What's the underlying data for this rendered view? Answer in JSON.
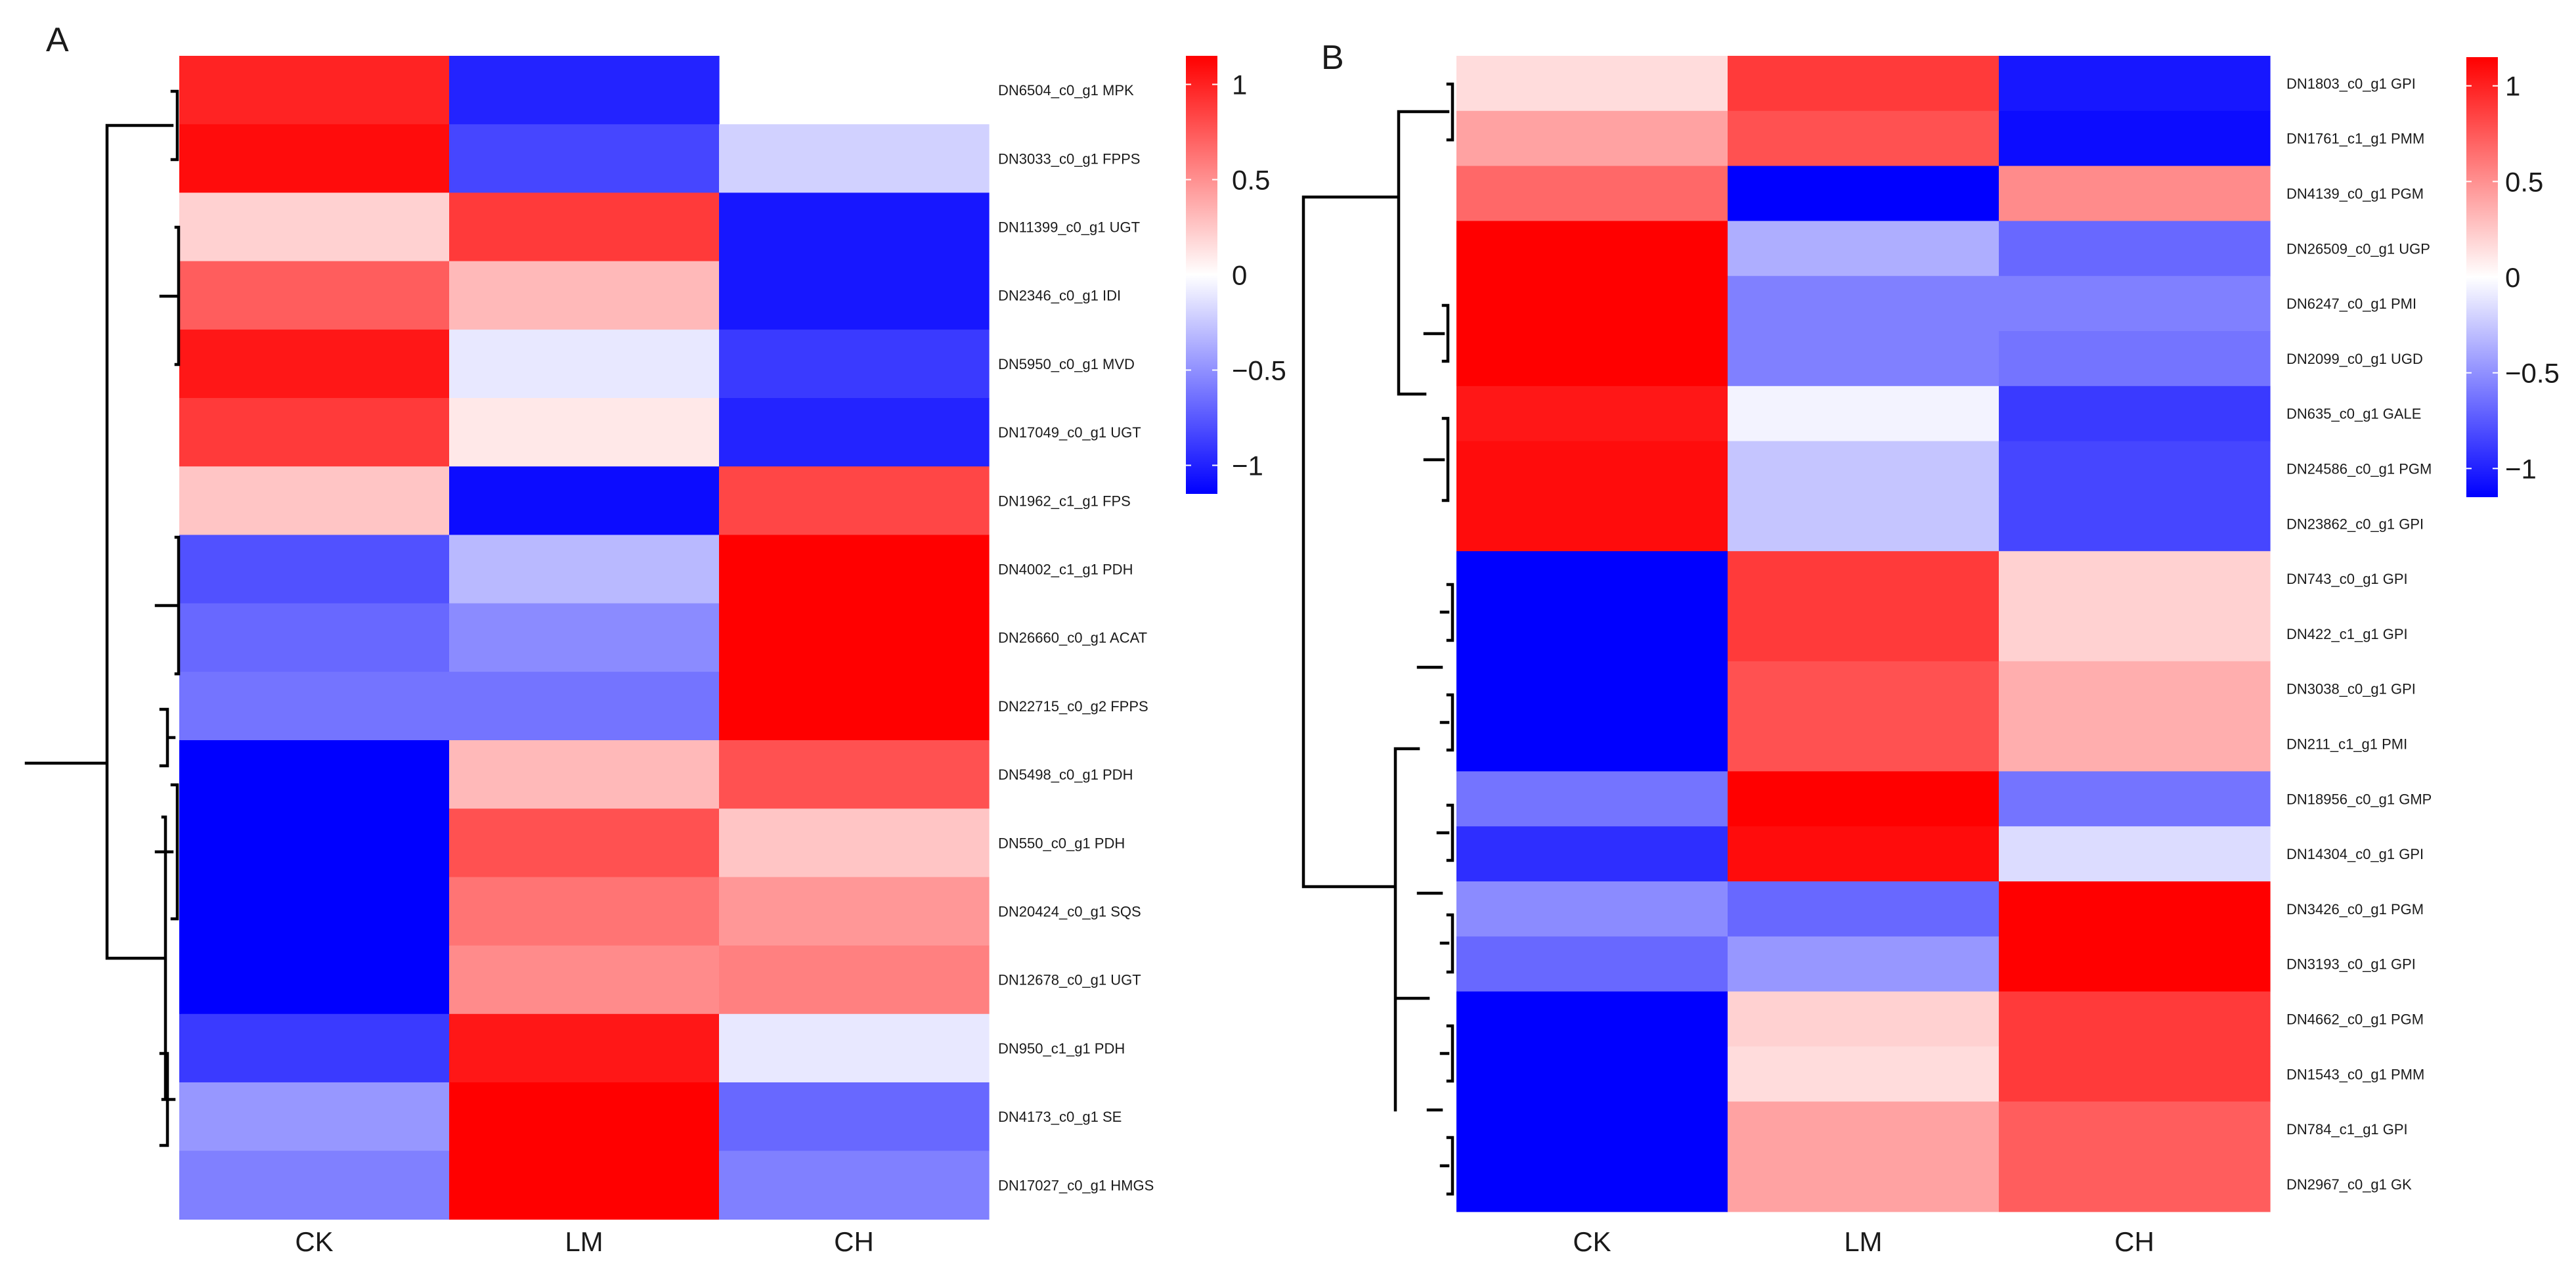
{
  "chart_data": [
    {
      "type": "heatmap",
      "panel_label": "A",
      "columns": [
        "CK",
        "LM",
        "CH"
      ],
      "rows": [
        "DN6504_c0_g1  MPK",
        "DN3033_c0_g1  FPPS",
        "DN11399_c0_g1  UGT",
        "DN2346_c0_g1  IDI",
        "DN5950_c0_g1  MVD",
        "DN17049_c0_g1  UGT",
        "DN1962_c1_g1  FPS",
        "DN4002_c1_g1  PDH",
        "DN26660_c0_g1  ACAT",
        "DN22715_c0_g2  FPPS",
        "DN5498_c0_g1  PDH",
        "DN550_c0_g1  PDH",
        "DN20424_c0_g1  SQS",
        "DN12678_c0_g1  UGT",
        "DN950_c1_g1  PDH",
        "DN4173_c0_g1  SE",
        "DN17027_c0_g1  HMGS"
      ],
      "values": [
        [
          0.95,
          -0.95,
          null
        ],
        [
          1.05,
          -0.8,
          -0.2
        ],
        [
          0.2,
          0.85,
          -1.0
        ],
        [
          0.7,
          0.3,
          -1.0
        ],
        [
          1.0,
          -0.1,
          -0.85
        ],
        [
          0.85,
          0.1,
          -0.95
        ],
        [
          0.25,
          -1.05,
          0.8
        ],
        [
          -0.75,
          -0.3,
          1.1
        ],
        [
          -0.65,
          -0.5,
          1.1
        ],
        [
          -0.6,
          -0.6,
          1.1
        ],
        [
          -1.1,
          0.3,
          0.75
        ],
        [
          -1.1,
          0.75,
          0.25
        ],
        [
          -1.1,
          0.6,
          0.45
        ],
        [
          -1.1,
          0.5,
          0.55
        ],
        [
          -0.85,
          1.0,
          -0.1
        ],
        [
          -0.45,
          1.1,
          -0.65
        ],
        [
          -0.55,
          1.1,
          -0.55
        ]
      ],
      "colorbar": {
        "ticks": [
          1,
          0.5,
          0,
          -0.5,
          -1
        ],
        "tick_labels": [
          "1",
          "0.5",
          "0",
          "−0.5",
          "−1"
        ],
        "min": -1.15,
        "max": 1.15
      },
      "colors": {
        "low": "#0000ff",
        "mid": "#ffffff",
        "high": "#ff0000"
      }
    },
    {
      "type": "heatmap",
      "panel_label": "B",
      "columns": [
        "CK",
        "LM",
        "CH"
      ],
      "rows": [
        "DN1803_c0_g1  GPI",
        "DN1761_c1_g1  PMM",
        "DN4139_c0_g1  PGM",
        "DN26509_c0_g1  UGP",
        "DN6247_c0_g1  PMI",
        "DN2099_c0_g1  UGD",
        "DN635_c0_g1  GALE",
        "DN24586_c0_g1  PGM",
        "DN23862_c0_g1  GPI",
        "DN743_c0_g1  GPI",
        "DN422_c1_g1  GPI",
        "DN3038_c0_g1  GPI",
        "DN211_c1_g1  PMI",
        "DN18956_c0_g1  GMP",
        "DN14304_c0_g1  GPI",
        "DN3426_c0_g1  PGM",
        "DN3193_c0_g1  GPI",
        "DN4662_c0_g1  PGM",
        "DN1543_c0_g1  PMM",
        "DN784_c1_g1  GPI",
        "DN2967_c0_g1  GK"
      ],
      "values": [
        [
          0.15,
          0.85,
          -1.0
        ],
        [
          0.4,
          0.75,
          -1.05
        ],
        [
          0.65,
          -1.1,
          0.5
        ],
        [
          1.1,
          -0.35,
          -0.65
        ],
        [
          1.1,
          -0.55,
          -0.55
        ],
        [
          1.1,
          -0.55,
          -0.6
        ],
        [
          1.0,
          -0.05,
          -0.85
        ],
        [
          1.05,
          -0.25,
          -0.8
        ],
        [
          1.05,
          -0.25,
          -0.8
        ],
        [
          -1.1,
          0.85,
          0.2
        ],
        [
          -1.1,
          0.85,
          0.2
        ],
        [
          -1.1,
          0.75,
          0.35
        ],
        [
          -1.1,
          0.75,
          0.35
        ],
        [
          -0.6,
          1.1,
          -0.6
        ],
        [
          -0.9,
          1.05,
          -0.15
        ],
        [
          -0.5,
          -0.65,
          1.1
        ],
        [
          -0.65,
          -0.45,
          1.1
        ],
        [
          -1.1,
          0.2,
          0.85
        ],
        [
          -1.1,
          0.15,
          0.85
        ],
        [
          -1.1,
          0.4,
          0.7
        ],
        [
          -1.1,
          0.4,
          0.7
        ]
      ],
      "colorbar": {
        "ticks": [
          1,
          0.5,
          0,
          -0.5,
          -1
        ],
        "tick_labels": [
          "1",
          "0.5",
          "0",
          "−0.5",
          "−1"
        ],
        "min": -1.15,
        "max": 1.15
      },
      "colors": {
        "low": "#0000ff",
        "mid": "#ffffff",
        "high": "#ff0000"
      }
    }
  ]
}
